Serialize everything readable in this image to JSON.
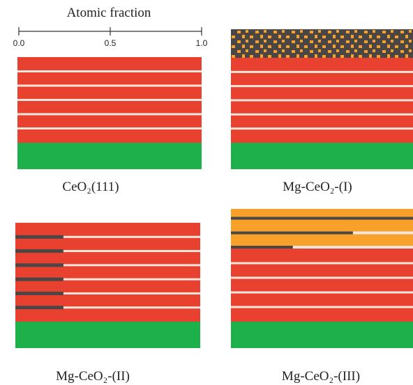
{
  "axis": {
    "title": "Atomic fraction",
    "ticks": [
      {
        "value": 0,
        "label": "0.0"
      },
      {
        "value": 0.5,
        "label": "0.5"
      },
      {
        "value": 1,
        "label": "1.0"
      }
    ]
  },
  "panels": [
    {
      "label": "CeO₂(111)"
    },
    {
      "label": "Mg-CeO₂-(I)"
    },
    {
      "label": "Mg-CeO₂-(II)",
      "dark_fractions": [
        0.26,
        0.26,
        0.26,
        0.26,
        0.26,
        0.26
      ]
    },
    {
      "label": "Mg-CeO₂-(III)",
      "dark_fractions": [
        1,
        0.67,
        0.34
      ]
    }
  ]
}
